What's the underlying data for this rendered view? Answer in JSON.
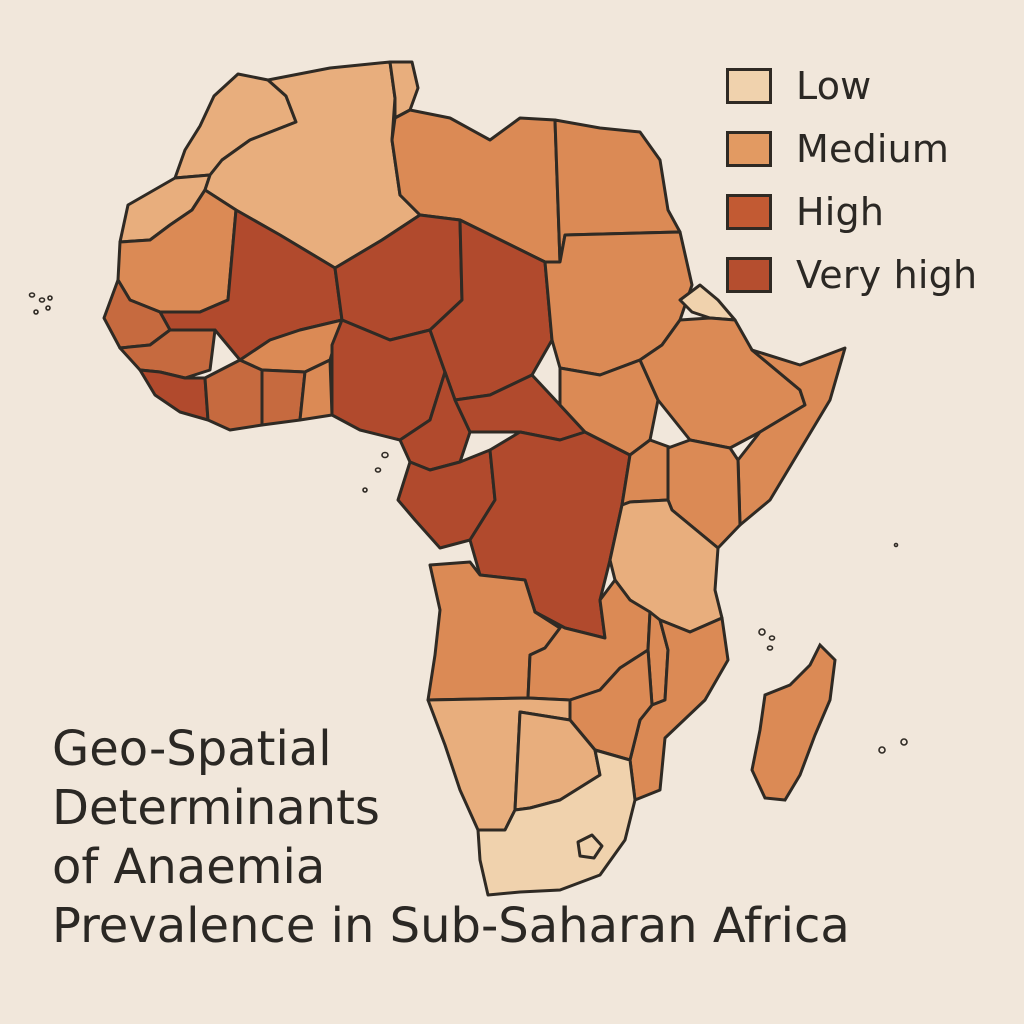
{
  "title_lines": [
    "Geo-Spatial",
    "Determinants",
    "of Anaemia",
    "Prevalence in Sub-Saharan Africa"
  ],
  "legend": [
    {
      "label": "Low",
      "color": "#f0d2ad"
    },
    {
      "label": "Medium",
      "color": "#e29a62"
    },
    {
      "label": "High",
      "color": "#c25a33"
    },
    {
      "label": "Very high",
      "color": "#b54e2f"
    }
  ],
  "colors": {
    "background": "#f1e7db",
    "border": "#2f2a24",
    "low": "#f0d2ad",
    "medium_light": "#e8ae7d",
    "medium": "#db8a55",
    "high": "#c66a3f",
    "very_high": "#b14a2d"
  }
}
